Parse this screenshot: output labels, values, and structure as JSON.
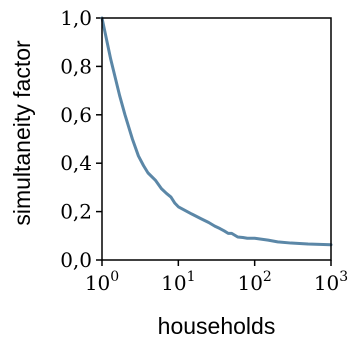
{
  "chart_data": {
    "type": "line",
    "xlabel": "households",
    "ylabel": "simultaneity factor",
    "xscale": "log",
    "xlim": [
      1,
      1000
    ],
    "ylim": [
      0.0,
      1.0
    ],
    "x_ticks": [
      {
        "value": 1,
        "base": "10",
        "exp": "0"
      },
      {
        "value": 10,
        "base": "10",
        "exp": "1"
      },
      {
        "value": 100,
        "base": "10",
        "exp": "2"
      },
      {
        "value": 1000,
        "base": "10",
        "exp": "3"
      }
    ],
    "y_ticks": [
      {
        "value": 0.0,
        "label": "0,0"
      },
      {
        "value": 0.2,
        "label": "0,2"
      },
      {
        "value": 0.4,
        "label": "0,4"
      },
      {
        "value": 0.6,
        "label": "0,6"
      },
      {
        "value": 0.8,
        "label": "0,8"
      },
      {
        "value": 1.0,
        "label": "1,0"
      }
    ],
    "grid": false,
    "line_color": "#5b87a7",
    "series": [
      {
        "x": [
          1,
          1.3,
          1.7,
          2,
          2.5,
          3,
          3.5,
          4,
          5,
          6,
          7,
          8,
          9,
          10,
          15,
          20,
          25,
          30,
          35,
          40,
          45,
          50,
          60,
          70,
          80,
          100,
          150,
          200,
          300,
          500,
          1000
        ],
        "y": [
          1.0,
          0.83,
          0.68,
          0.6,
          0.5,
          0.43,
          0.39,
          0.36,
          0.33,
          0.295,
          0.275,
          0.26,
          0.235,
          0.22,
          0.19,
          0.17,
          0.155,
          0.14,
          0.13,
          0.12,
          0.11,
          0.11,
          0.095,
          0.093,
          0.09,
          0.09,
          0.082,
          0.075,
          0.07,
          0.066,
          0.063
        ]
      }
    ]
  }
}
